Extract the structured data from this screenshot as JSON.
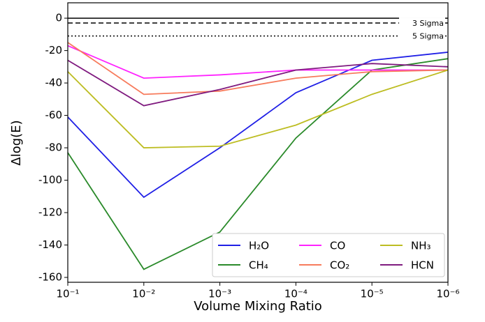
{
  "chart_data": {
    "type": "line",
    "xlabel": "Volume Mixing Ratio",
    "ylabel": "Δlog(E)",
    "xscale": "log",
    "x": [
      0.1,
      0.01,
      0.001,
      0.0001,
      1e-05,
      1e-06
    ],
    "xlim": [
      0.1,
      1e-06
    ],
    "xticks": [
      {
        "value": 0.1,
        "label": "10⁻¹"
      },
      {
        "value": 0.01,
        "label": "10⁻²"
      },
      {
        "value": 0.001,
        "label": "10⁻³"
      },
      {
        "value": 0.0001,
        "label": "10⁻⁴"
      },
      {
        "value": 1e-05,
        "label": "10⁻⁵"
      },
      {
        "value": 1e-06,
        "label": "10⁻⁶"
      }
    ],
    "ylim": [
      -163,
      9.5
    ],
    "yticks": [
      0,
      -20,
      -40,
      -60,
      -80,
      -100,
      -120,
      -140,
      -160
    ],
    "reference_lines": [
      {
        "value": 0,
        "style": "solid"
      },
      {
        "value": -3,
        "style": "dashed",
        "label": "3 Sigma"
      },
      {
        "value": -11,
        "style": "dotted",
        "label": "5 Sigma"
      }
    ],
    "legend": "lower right",
    "series": [
      {
        "name": "H₂O",
        "color": "#1f1fe6",
        "values": [
          -61,
          -110.5,
          -80,
          -46,
          -26,
          -21
        ]
      },
      {
        "name": "CH₄",
        "color": "#2a8a2a",
        "values": [
          -83,
          -155,
          -132,
          -74,
          -32,
          -25
        ]
      },
      {
        "name": "CO",
        "color": "#ff22ff",
        "values": [
          -17,
          -37,
          -35,
          -32,
          -32,
          -32
        ]
      },
      {
        "name": "CO₂",
        "color": "#f77b5c",
        "values": [
          -15,
          -47,
          -45,
          -37,
          -33,
          -32
        ]
      },
      {
        "name": "NH₃",
        "color": "#bdbd22",
        "values": [
          -33,
          -80,
          -79,
          -66,
          -47,
          -32
        ]
      },
      {
        "name": "HCN",
        "color": "#7f1a7f",
        "values": [
          -26,
          -54,
          -44,
          -32,
          -28,
          -30
        ]
      }
    ]
  }
}
